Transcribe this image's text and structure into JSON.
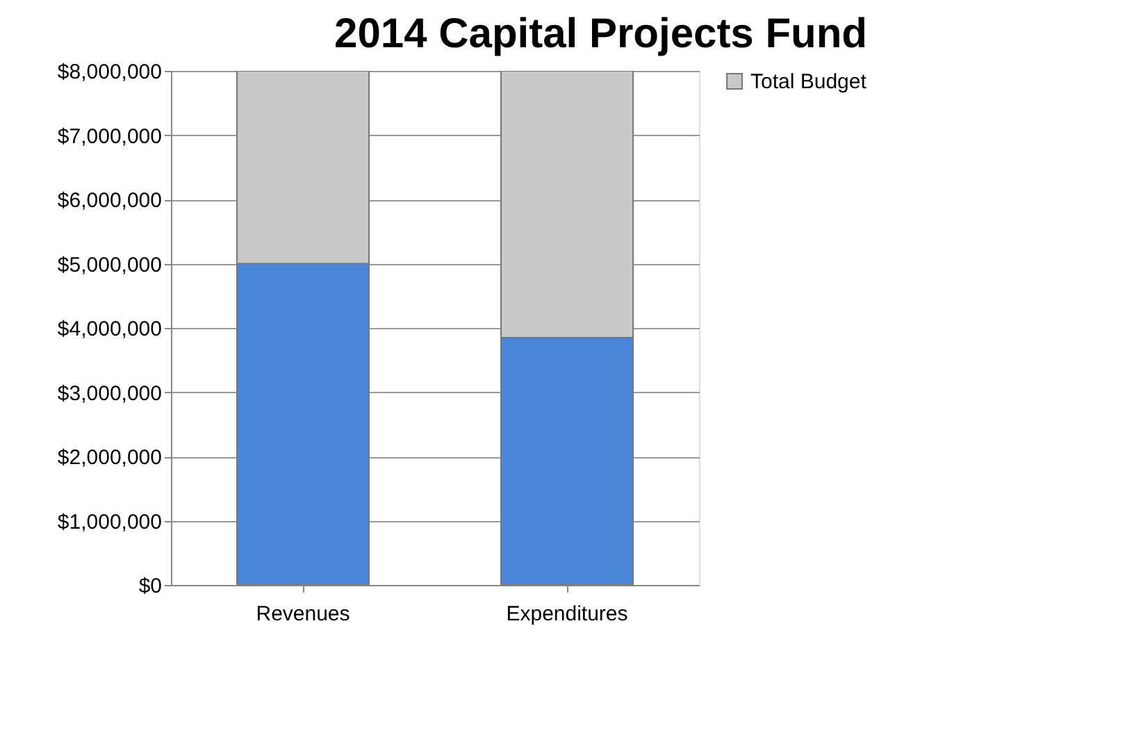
{
  "chart_data": {
    "type": "bar",
    "title": "2014 Capital Projects Fund",
    "stacked": true,
    "categories": [
      "Revenues",
      "Expenditures"
    ],
    "series": [
      {
        "color": "#4a86d8",
        "values": [
          5000000,
          3850000
        ]
      },
      {
        "name": "Total Budget",
        "color": "#c8c8c8",
        "values": [
          3000000,
          4150000
        ]
      }
    ],
    "ylim": [
      0,
      8000000
    ],
    "yticks": [
      {
        "value": 0,
        "label": "$0"
      },
      {
        "value": 1000000,
        "label": "$1,000,000"
      },
      {
        "value": 2000000,
        "label": "$2,000,000"
      },
      {
        "value": 3000000,
        "label": "$3,000,000"
      },
      {
        "value": 4000000,
        "label": "$4,000,000"
      },
      {
        "value": 5000000,
        "label": "$5,000,000"
      },
      {
        "value": 6000000,
        "label": "$6,000,000"
      },
      {
        "value": 7000000,
        "label": "$7,000,000"
      },
      {
        "value": 8000000,
        "label": "$8,000,000"
      }
    ],
    "grid": "y",
    "legend": "right"
  }
}
